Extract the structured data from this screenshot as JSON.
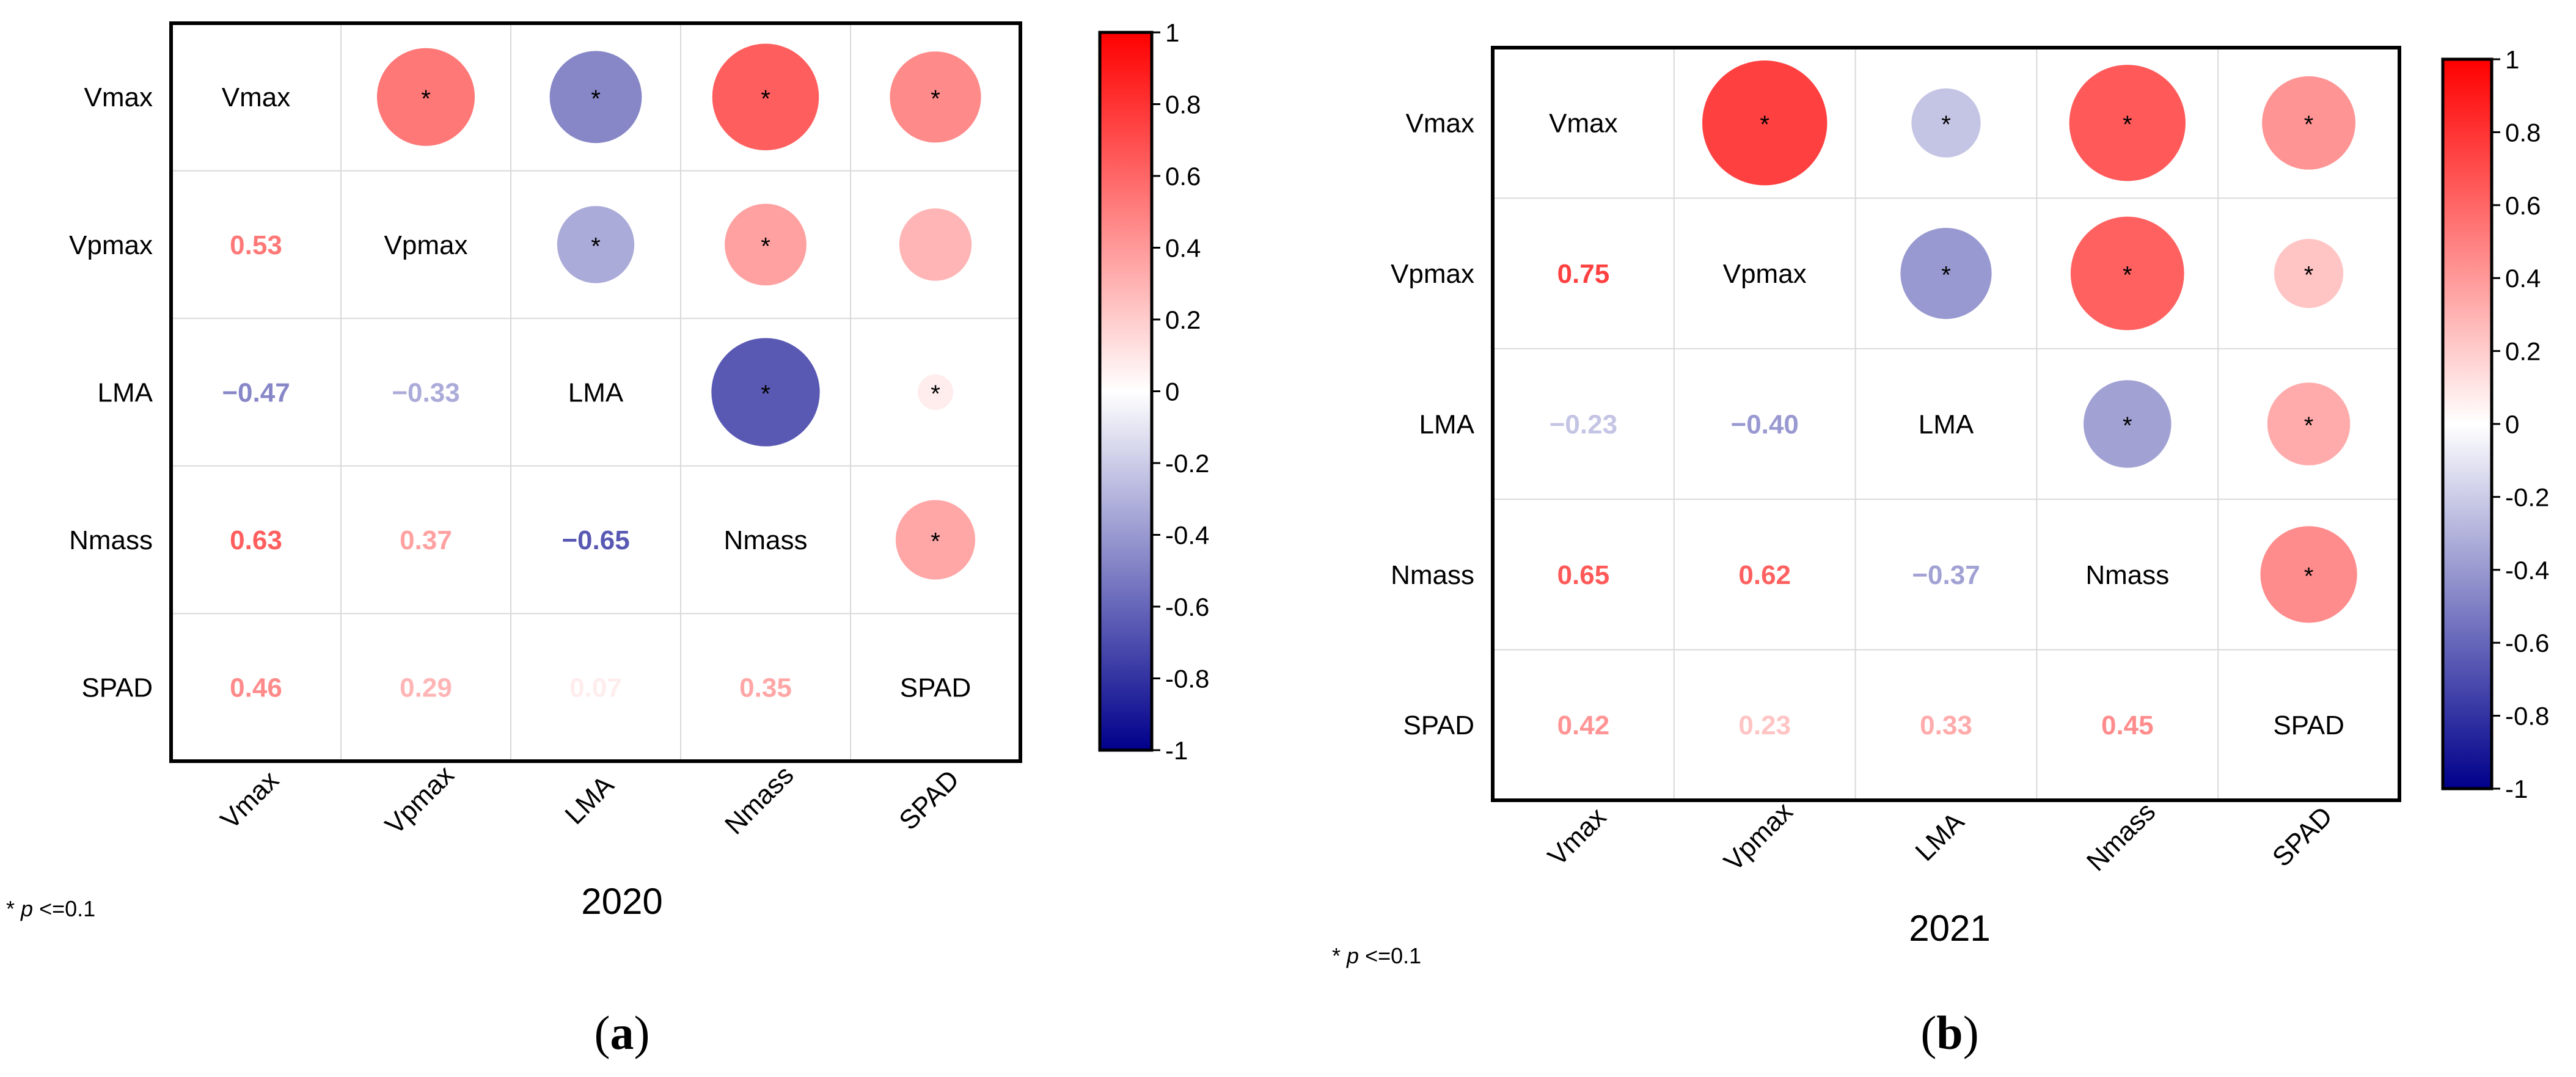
{
  "chart_data": [
    {
      "type": "heatmap",
      "subtype": "correlation-matrix",
      "title": "2020",
      "panel_label": "a",
      "variables": [
        "Vmax",
        "Vpmax",
        "LMA",
        "Nmass",
        "SPAD"
      ],
      "lower_triangle_values": [
        {
          "row": "Vpmax",
          "col": "Vmax",
          "value": 0.53
        },
        {
          "row": "LMA",
          "col": "Vmax",
          "value": -0.47
        },
        {
          "row": "LMA",
          "col": "Vpmax",
          "value": -0.33
        },
        {
          "row": "Nmass",
          "col": "Vmax",
          "value": 0.63
        },
        {
          "row": "Nmass",
          "col": "Vpmax",
          "value": 0.37
        },
        {
          "row": "Nmass",
          "col": "LMA",
          "value": -0.65
        },
        {
          "row": "SPAD",
          "col": "Vmax",
          "value": 0.46
        },
        {
          "row": "SPAD",
          "col": "Vpmax",
          "value": 0.29
        },
        {
          "row": "SPAD",
          "col": "LMA",
          "value": 0.07
        },
        {
          "row": "SPAD",
          "col": "Nmass",
          "value": 0.35
        }
      ],
      "significant": [
        {
          "row": "Vmax",
          "col": "Vpmax",
          "value": true
        },
        {
          "row": "Vmax",
          "col": "LMA",
          "value": true
        },
        {
          "row": "Vmax",
          "col": "Nmass",
          "value": true
        },
        {
          "row": "Vmax",
          "col": "SPAD",
          "value": true
        },
        {
          "row": "Vpmax",
          "col": "LMA",
          "value": true
        },
        {
          "row": "Vpmax",
          "col": "Nmass",
          "value": true
        },
        {
          "row": "Vpmax",
          "col": "SPAD",
          "value": false
        },
        {
          "row": "LMA",
          "col": "Nmass",
          "value": true
        },
        {
          "row": "LMA",
          "col": "SPAD",
          "value": true
        },
        {
          "row": "Nmass",
          "col": "SPAD",
          "value": true
        }
      ],
      "colorbar": {
        "min": -1,
        "max": 1,
        "ticks": [
          "1",
          "0.8",
          "0.6",
          "0.4",
          "0.2",
          "0",
          "-0.2",
          "-0.4",
          "-0.6",
          "-0.8",
          "-1"
        ]
      },
      "footnote": {
        "marker": "*",
        "variable": "p",
        "condition": "<=0.1"
      }
    },
    {
      "type": "heatmap",
      "subtype": "correlation-matrix",
      "title": "2021",
      "panel_label": "b",
      "variables": [
        "Vmax",
        "Vpmax",
        "LMA",
        "Nmass",
        "SPAD"
      ],
      "lower_triangle_values": [
        {
          "row": "Vpmax",
          "col": "Vmax",
          "value": 0.75
        },
        {
          "row": "LMA",
          "col": "Vmax",
          "value": -0.23
        },
        {
          "row": "LMA",
          "col": "Vpmax",
          "value": -0.4
        },
        {
          "row": "Nmass",
          "col": "Vmax",
          "value": 0.65
        },
        {
          "row": "Nmass",
          "col": "Vpmax",
          "value": 0.62
        },
        {
          "row": "Nmass",
          "col": "LMA",
          "value": -0.37
        },
        {
          "row": "SPAD",
          "col": "Vmax",
          "value": 0.42
        },
        {
          "row": "SPAD",
          "col": "Vpmax",
          "value": 0.23
        },
        {
          "row": "SPAD",
          "col": "LMA",
          "value": 0.33
        },
        {
          "row": "SPAD",
          "col": "Nmass",
          "value": 0.45
        }
      ],
      "significant": [
        {
          "row": "Vmax",
          "col": "Vpmax",
          "value": true
        },
        {
          "row": "Vmax",
          "col": "LMA",
          "value": true
        },
        {
          "row": "Vmax",
          "col": "Nmass",
          "value": true
        },
        {
          "row": "Vmax",
          "col": "SPAD",
          "value": true
        },
        {
          "row": "Vpmax",
          "col": "LMA",
          "value": true
        },
        {
          "row": "Vpmax",
          "col": "Nmass",
          "value": true
        },
        {
          "row": "Vpmax",
          "col": "SPAD",
          "value": true
        },
        {
          "row": "LMA",
          "col": "Nmass",
          "value": true
        },
        {
          "row": "LMA",
          "col": "SPAD",
          "value": true
        },
        {
          "row": "Nmass",
          "col": "SPAD",
          "value": true
        }
      ],
      "colorbar": {
        "min": -1,
        "max": 1,
        "ticks": [
          "1",
          "0.8",
          "0.6",
          "0.4",
          "0.2",
          "0",
          "-0.2",
          "-0.4",
          "-0.6",
          "-0.8",
          "-1"
        ]
      },
      "footnote": {
        "marker": "*",
        "variable": "p",
        "condition": "<=0.1"
      }
    }
  ],
  "colors": {
    "positive": "#ff0000",
    "neutral": "#ffffff",
    "negative": "#00008b",
    "frame": "#000000",
    "grid": "#d9d9d9"
  }
}
